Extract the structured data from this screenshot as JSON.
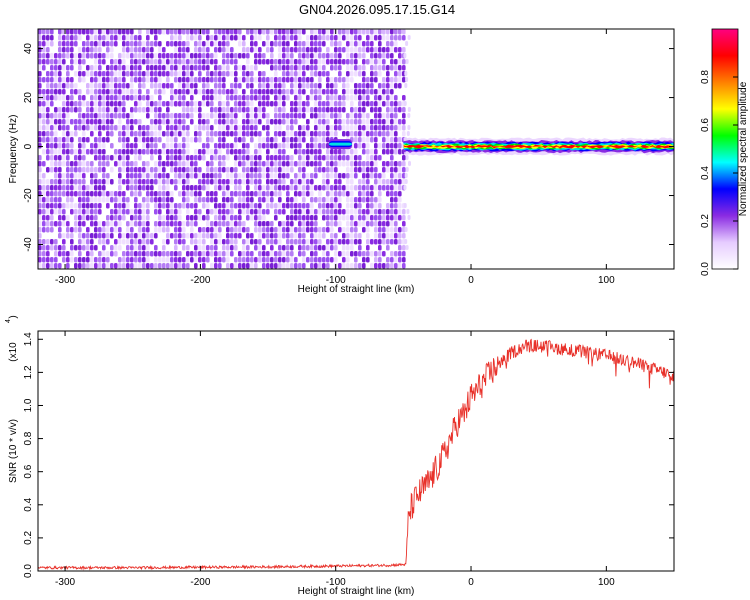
{
  "title": "GN04.2026.095.17.15.G14",
  "chart_data": [
    {
      "type": "heatmap",
      "xlabel": "Height of straight line (km)",
      "ylabel": "Frequency (Hz)",
      "xlim": [
        -320,
        150
      ],
      "ylim": [
        -50,
        48
      ],
      "xticks": [
        -300,
        -200,
        -100,
        0,
        100
      ],
      "yticks": [
        -40,
        -20,
        0,
        20,
        40
      ],
      "noise_region_x": [
        -320,
        -50
      ],
      "signal_line": {
        "x_range": [
          -50,
          150
        ],
        "frequency": 0
      },
      "weak_signal_segment": {
        "x_range": [
          -105,
          -88
        ],
        "frequency": 1
      },
      "colorbar": {
        "label": "Normalized spectral amplitude",
        "range": [
          0,
          1
        ],
        "ticks": [
          0.0,
          0.2,
          0.4,
          0.6,
          0.8
        ],
        "colors": [
          "#ffffff",
          "#e6ccff",
          "#8a2be2",
          "#0000ff",
          "#00ffff",
          "#00ff00",
          "#ffff00",
          "#ff8000",
          "#ff0000",
          "#ff0080"
        ]
      },
      "colors": {
        "noise": "#8a2be2",
        "core": "#ff0000"
      }
    },
    {
      "type": "line",
      "xlabel": "Height of straight line (km)",
      "ylabel": "SNR (10 * v/v)",
      "scale_label": "(x10",
      "scale_exp": "4",
      "xlim": [
        -320,
        150
      ],
      "ylim": [
        0,
        1.45
      ],
      "xticks": [
        -300,
        -200,
        -100,
        0,
        100
      ],
      "yticks": [
        "0.0",
        "0.2",
        "0.4",
        "0.6",
        "0.8",
        "1.0",
        "1.2",
        "1.4"
      ],
      "series": [
        {
          "color": "#e8312a",
          "x": [
            -320,
            -250,
            -150,
            -100,
            -60,
            -48,
            -46,
            -40,
            -30,
            -20,
            -15,
            -10,
            -5,
            0,
            10,
            20,
            30,
            40,
            50,
            70,
            100,
            120,
            150
          ],
          "values": [
            0.02,
            0.02,
            0.025,
            0.03,
            0.035,
            0.04,
            0.35,
            0.45,
            0.55,
            0.7,
            0.8,
            0.9,
            0.95,
            1.05,
            1.15,
            1.25,
            1.32,
            1.36,
            1.36,
            1.34,
            1.3,
            1.26,
            1.18
          ]
        }
      ]
    }
  ]
}
